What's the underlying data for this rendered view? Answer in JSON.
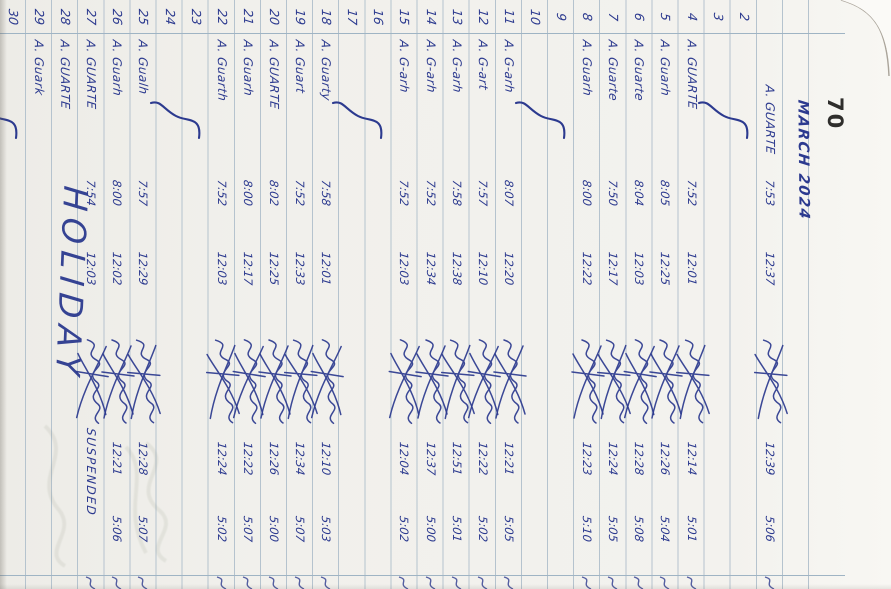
{
  "header": {
    "page_number": "70",
    "month_header": "MARCH 2024"
  },
  "overlays": {
    "holiday": "HOLIDAY"
  },
  "colors": {
    "ink": "#2c3a8f",
    "rule": "#b5c3ce",
    "margin": "#9fb4c4",
    "paper": "#f3f2ee"
  },
  "columns": [
    "day",
    "name",
    "time_in_am",
    "time_out_noon",
    "signature",
    "time_in_pm",
    "time_out_pm"
  ],
  "rows": [
    {
      "day": "",
      "name": "A. GUARTE",
      "am": "7:53",
      "noon": "12:37",
      "sig": true,
      "pm": "12:39",
      "total": "5:06",
      "indent": true
    },
    {
      "day": "2",
      "rest": true
    },
    {
      "day": "3"
    },
    {
      "day": "4",
      "name": "A. GUARTE",
      "am": "7:52",
      "noon": "12:01",
      "sig": true,
      "pm": "12:14",
      "total": "5:01"
    },
    {
      "day": "5",
      "name": "A. Guarh",
      "am": "8:05",
      "noon": "12:25",
      "sig": true,
      "pm": "12:26",
      "total": "5:04"
    },
    {
      "day": "6",
      "name": "A. Guarte",
      "am": "8:04",
      "noon": "12:03",
      "sig": true,
      "pm": "12:28",
      "total": "5:08"
    },
    {
      "day": "7",
      "name": "A. Guarte",
      "am": "7:50",
      "noon": "12:17",
      "sig": true,
      "pm": "12:24",
      "total": "5:05"
    },
    {
      "day": "8",
      "name": "A. Guarh",
      "am": "8:00",
      "noon": "12:22",
      "sig": true,
      "pm": "12:23",
      "total": "5:10"
    },
    {
      "day": "9",
      "rest": true
    },
    {
      "day": "10"
    },
    {
      "day": "11",
      "name": "A. G-arh",
      "am": "8:07",
      "noon": "12:20",
      "sig": true,
      "pm": "12:21",
      "total": "5:05"
    },
    {
      "day": "12",
      "name": "A. G-art",
      "am": "7:57",
      "noon": "12:10",
      "sig": true,
      "pm": "12:22",
      "total": "5:02"
    },
    {
      "day": "13",
      "name": "A. G-arh",
      "am": "7:58",
      "noon": "12:38",
      "sig": true,
      "pm": "12:51",
      "total": "5:01"
    },
    {
      "day": "14",
      "name": "A. G-arh",
      "am": "7:52",
      "noon": "12:34",
      "sig": true,
      "pm": "12:37",
      "total": "5:00"
    },
    {
      "day": "15",
      "name": "A. G-arh",
      "am": "7:52",
      "noon": "12:03",
      "sig": true,
      "pm": "12:04",
      "total": "5:02"
    },
    {
      "day": "16",
      "rest": true
    },
    {
      "day": "17"
    },
    {
      "day": "18",
      "name": "A. Guarty",
      "am": "7:58",
      "noon": "12:01",
      "sig": true,
      "pm": "12:10",
      "total": "5:03"
    },
    {
      "day": "19",
      "name": "A. Guart",
      "am": "7:52",
      "noon": "12:33",
      "sig": true,
      "pm": "12:34",
      "total": "5:07"
    },
    {
      "day": "20",
      "name": "A. GUARTE",
      "am": "8:02",
      "noon": "12:25",
      "sig": true,
      "pm": "12:26",
      "total": "5:00"
    },
    {
      "day": "21",
      "name": "A. Guarh",
      "am": "8:00",
      "noon": "12:17",
      "sig": true,
      "pm": "12:22",
      "total": "5:07"
    },
    {
      "day": "22",
      "name": "A. Guarth",
      "am": "7:52",
      "noon": "12:03",
      "sig": true,
      "pm": "12:24",
      "total": "5:02"
    },
    {
      "day": "23",
      "rest": true
    },
    {
      "day": "24"
    },
    {
      "day": "25",
      "name": "A. Gualh",
      "am": "7:57",
      "noon": "12:29",
      "sig": true,
      "pm": "12:28",
      "total": "5:07"
    },
    {
      "day": "26",
      "name": "A. Guarh",
      "am": "8:00",
      "noon": "12:02",
      "sig": true,
      "pm": "12:21",
      "total": "5:06"
    },
    {
      "day": "27",
      "name": "A. GUARTE",
      "am": "7:54",
      "noon": "12:03",
      "sig": true,
      "note": "SUSPENDED"
    },
    {
      "day": "28",
      "name": "A. GUARTE",
      "holiday": true
    },
    {
      "day": "29",
      "name": "A. Guark",
      "holiday": true
    },
    {
      "day": "30",
      "rest": true
    }
  ]
}
